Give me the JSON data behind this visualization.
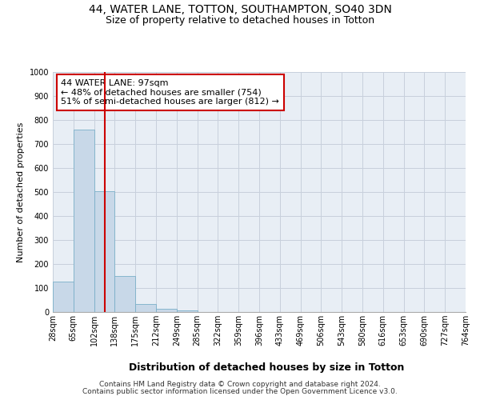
{
  "title1": "44, WATER LANE, TOTTON, SOUTHAMPTON, SO40 3DN",
  "title2": "Size of property relative to detached houses in Totton",
  "xlabel": "Distribution of detached houses by size in Totton",
  "ylabel": "Number of detached properties",
  "bar_values": [
    127,
    760,
    505,
    150,
    35,
    15,
    8,
    0,
    0,
    0,
    0,
    0,
    0,
    0,
    0,
    0,
    0,
    0,
    0,
    0
  ],
  "bin_labels": [
    "28sqm",
    "65sqm",
    "102sqm",
    "138sqm",
    "175sqm",
    "212sqm",
    "249sqm",
    "285sqm",
    "322sqm",
    "359sqm",
    "396sqm",
    "433sqm",
    "469sqm",
    "506sqm",
    "543sqm",
    "580sqm",
    "616sqm",
    "653sqm",
    "690sqm",
    "727sqm",
    "764sqm"
  ],
  "bar_color": "#c8d8e8",
  "bar_edge_color": "#7aafc8",
  "grid_color": "#c8d0dc",
  "background_color": "#e8eef5",
  "vline_x": 2.0,
  "vline_color": "#cc0000",
  "annotation_text": "44 WATER LANE: 97sqm\n← 48% of detached houses are smaller (754)\n51% of semi-detached houses are larger (812) →",
  "annotation_box_color": "#ffffff",
  "annotation_box_edge": "#cc0000",
  "ylim": [
    0,
    1000
  ],
  "yticks": [
    0,
    100,
    200,
    300,
    400,
    500,
    600,
    700,
    800,
    900,
    1000
  ],
  "footer1": "Contains HM Land Registry data © Crown copyright and database right 2024.",
  "footer2": "Contains public sector information licensed under the Open Government Licence v3.0.",
  "title1_fontsize": 10,
  "title2_fontsize": 9,
  "xlabel_fontsize": 9,
  "ylabel_fontsize": 8,
  "tick_fontsize": 7,
  "annotation_fontsize": 8,
  "footer_fontsize": 6.5
}
